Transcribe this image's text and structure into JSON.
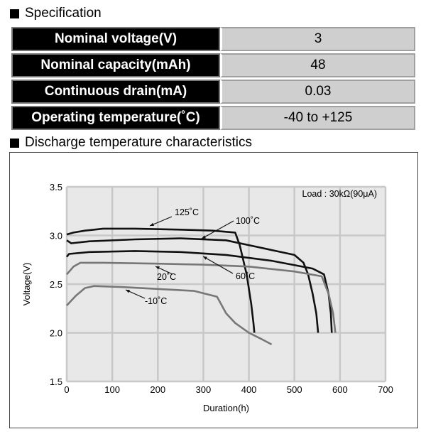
{
  "specification": {
    "title": "Specification",
    "rows": [
      {
        "label": "Nominal voltage(V)",
        "value": "3"
      },
      {
        "label": "Nominal capacity(mAh)",
        "value": "48"
      },
      {
        "label": "Continuous drain(mA)",
        "value": "0.03"
      },
      {
        "label": "Operating temperature(˚C)",
        "value": "-40 to +125"
      }
    ]
  },
  "discharge": {
    "title": "Discharge temperature characteristics",
    "load_label": "Load : 30kΩ(90μA)"
  },
  "chart_data": {
    "type": "line",
    "xlabel": "Duration(h)",
    "ylabel": "Voltage(V)",
    "xlim": [
      0,
      700
    ],
    "ylim": [
      1.5,
      3.5
    ],
    "x_ticks": [
      "0",
      "100",
      "200",
      "300",
      "400",
      "500",
      "600",
      "700"
    ],
    "y_ticks": [
      "1.5",
      "2.0",
      "2.5",
      "3.0",
      "3.5"
    ],
    "grid": true,
    "annotation": "Load : 30kΩ(90μA)",
    "colors": {
      "grid": "#c8c8c8",
      "plot_bg": "#e8e8e8",
      "dark": "#111111",
      "gray": "#777777"
    },
    "series": [
      {
        "name": "125˚C",
        "color": "#111111",
        "points": [
          [
            0,
            3.01
          ],
          [
            15,
            3.03
          ],
          [
            40,
            3.05
          ],
          [
            80,
            3.07
          ],
          [
            150,
            3.07
          ],
          [
            250,
            3.06
          ],
          [
            320,
            3.05
          ],
          [
            370,
            3.03
          ],
          [
            380,
            2.9
          ],
          [
            395,
            2.6
          ],
          [
            405,
            2.3
          ],
          [
            410,
            2.1
          ],
          [
            412,
            2.0
          ]
        ]
      },
      {
        "name": "100˚C",
        "color": "#111111",
        "points": [
          [
            0,
            2.95
          ],
          [
            10,
            2.92
          ],
          [
            50,
            2.94
          ],
          [
            150,
            2.96
          ],
          [
            250,
            2.97
          ],
          [
            350,
            2.95
          ],
          [
            420,
            2.88
          ],
          [
            500,
            2.8
          ],
          [
            520,
            2.72
          ],
          [
            530,
            2.6
          ],
          [
            540,
            2.4
          ],
          [
            548,
            2.2
          ],
          [
            552,
            2.0
          ]
        ]
      },
      {
        "name": "60˚C",
        "color": "#111111",
        "points": [
          [
            0,
            2.78
          ],
          [
            5,
            2.81
          ],
          [
            50,
            2.83
          ],
          [
            150,
            2.84
          ],
          [
            250,
            2.83
          ],
          [
            350,
            2.8
          ],
          [
            450,
            2.74
          ],
          [
            540,
            2.66
          ],
          [
            565,
            2.6
          ],
          [
            575,
            2.4
          ],
          [
            580,
            2.2
          ],
          [
            582,
            2.0
          ]
        ]
      },
      {
        "name": "20˚C",
        "color": "#777777",
        "points": [
          [
            0,
            2.6
          ],
          [
            15,
            2.68
          ],
          [
            30,
            2.72
          ],
          [
            80,
            2.72
          ],
          [
            200,
            2.71
          ],
          [
            300,
            2.7
          ],
          [
            400,
            2.68
          ],
          [
            500,
            2.63
          ],
          [
            560,
            2.58
          ],
          [
            575,
            2.4
          ],
          [
            585,
            2.2
          ],
          [
            590,
            2.0
          ]
        ]
      },
      {
        "name": "-10˚C",
        "color": "#777777",
        "points": [
          [
            0,
            2.28
          ],
          [
            20,
            2.38
          ],
          [
            40,
            2.46
          ],
          [
            60,
            2.48
          ],
          [
            120,
            2.47
          ],
          [
            200,
            2.45
          ],
          [
            280,
            2.43
          ],
          [
            330,
            2.37
          ],
          [
            350,
            2.2
          ],
          [
            370,
            2.1
          ],
          [
            400,
            2.0
          ],
          [
            430,
            1.93
          ],
          [
            450,
            1.88
          ]
        ]
      }
    ],
    "series_labels": [
      "125˚C",
      "100˚C",
      "60˚C",
      "20˚C",
      "-10˚C"
    ]
  }
}
